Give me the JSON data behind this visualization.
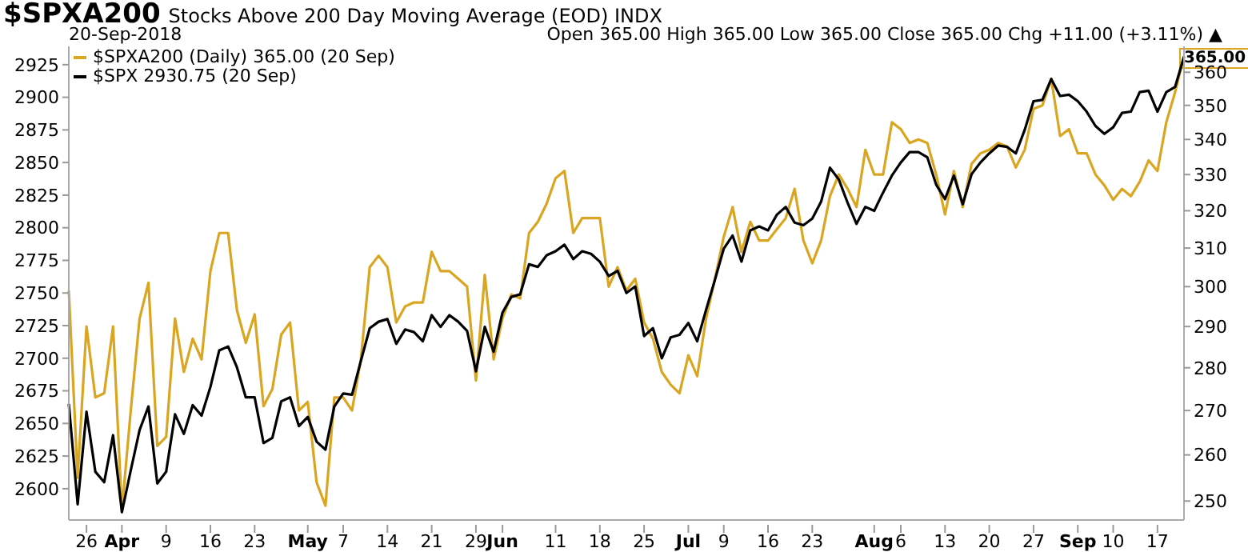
{
  "chart_data": {
    "type": "line",
    "title": "$SPXA200",
    "subtitle": "Stocks Above 200 Day Moving Average (EOD) INDX",
    "annotations": [
      "20-Sep-2018",
      "Open 365.00  High 365.00  Low 365.00  Close 365.00  Chg +11.00 (+3.11%) ▲",
      "365.00"
    ],
    "categories": [
      null,
      null,
      "26",
      null,
      null,
      null,
      "Apr",
      null,
      null,
      null,
      null,
      "9",
      null,
      null,
      null,
      null,
      "16",
      null,
      null,
      null,
      null,
      "23",
      null,
      null,
      null,
      null,
      null,
      "May",
      null,
      null,
      null,
      "7",
      null,
      null,
      null,
      null,
      "14",
      null,
      null,
      null,
      null,
      "21",
      null,
      null,
      null,
      null,
      "29",
      null,
      null,
      "Jun",
      null,
      null,
      null,
      null,
      null,
      "11",
      null,
      null,
      null,
      null,
      "18",
      null,
      null,
      null,
      null,
      "25",
      null,
      null,
      null,
      null,
      "Jul",
      null,
      null,
      null,
      "9",
      null,
      null,
      null,
      null,
      "16",
      null,
      null,
      null,
      null,
      "23",
      null,
      null,
      null,
      null,
      null,
      null,
      "Aug",
      null,
      null,
      "6",
      null,
      null,
      null,
      null,
      "13",
      null,
      null,
      null,
      null,
      "20",
      null,
      null,
      null,
      null,
      "27",
      null,
      null,
      null,
      null,
      "Sep",
      null,
      null,
      null,
      "10",
      null,
      null,
      null,
      null,
      "17",
      null,
      null,
      null
    ],
    "series": [
      {
        "name": "$SPXA200 (Daily) 365.00 (20 Sep)",
        "color": "#daa520",
        "axis": "y2",
        "values": [
          299,
          255,
          290,
          273,
          274,
          290,
          248,
          270,
          292,
          301,
          262,
          264,
          292,
          279,
          287,
          282,
          304,
          314,
          314,
          294,
          286,
          293,
          271,
          275,
          288,
          291,
          270,
          272,
          254,
          249,
          273,
          273,
          270,
          282,
          305,
          308,
          305,
          291,
          295,
          296,
          296,
          309,
          304,
          304,
          302,
          300,
          277,
          303,
          282,
          292,
          298,
          297,
          314,
          317,
          322,
          329,
          331,
          314,
          318,
          318,
          318,
          300,
          305,
          299,
          302,
          291,
          287,
          279,
          276,
          274,
          283,
          278,
          292,
          302,
          313,
          321,
          309,
          317,
          312,
          312,
          315,
          318,
          326,
          312,
          306,
          312,
          324,
          330,
          326,
          321,
          337,
          330,
          330,
          345,
          343,
          339,
          340,
          339,
          330,
          319,
          331,
          321,
          333,
          336,
          337,
          339,
          338,
          332,
          337,
          349,
          350,
          358,
          341,
          343,
          336,
          336,
          330,
          327,
          323,
          326,
          324,
          328,
          334,
          331,
          345,
          354,
          365
        ]
      },
      {
        "name": "$SPX 2930.75 (20 Sep)",
        "color": "#000000",
        "values": [
          2665,
          2588,
          2659,
          2613,
          2605,
          2641,
          2582,
          2614,
          2645,
          2663,
          2604,
          2613,
          2657,
          2642,
          2664,
          2656,
          2678,
          2706,
          2709,
          2693,
          2670,
          2670,
          2635,
          2639,
          2667,
          2670,
          2648,
          2655,
          2636,
          2630,
          2663,
          2673,
          2672,
          2698,
          2723,
          2728,
          2730,
          2711,
          2722,
          2720,
          2713,
          2733,
          2724,
          2733,
          2728,
          2721,
          2690,
          2724,
          2705,
          2735,
          2747,
          2749,
          2772,
          2770,
          2779,
          2782,
          2787,
          2776,
          2782,
          2780,
          2774,
          2763,
          2767,
          2750,
          2755,
          2717,
          2723,
          2700,
          2716,
          2718,
          2727,
          2713,
          2737,
          2760,
          2784,
          2794,
          2774,
          2798,
          2801,
          2798,
          2810,
          2816,
          2804,
          2802,
          2807,
          2820,
          2846,
          2837,
          2819,
          2803,
          2816,
          2813,
          2827,
          2840,
          2850,
          2858,
          2858,
          2854,
          2833,
          2822,
          2840,
          2818,
          2841,
          2850,
          2857,
          2863,
          2862,
          2857,
          2875,
          2897,
          2898,
          2914,
          2901,
          2902,
          2897,
          2889,
          2878,
          2872,
          2877,
          2888,
          2889,
          2904,
          2905,
          2889,
          2904,
          2908,
          2931
        ]
      }
    ],
    "ylim": [
      2576,
      2939
    ],
    "yticks": [
      2600,
      2625,
      2650,
      2675,
      2700,
      2725,
      2750,
      2775,
      2800,
      2825,
      2850,
      2875,
      2900,
      2925
    ],
    "y2lim": [
      246,
      368
    ],
    "y2ticks": [
      250,
      260,
      270,
      280,
      290,
      300,
      310,
      320,
      330,
      340,
      350,
      360
    ],
    "log": "y2",
    "legend": "top left"
  }
}
